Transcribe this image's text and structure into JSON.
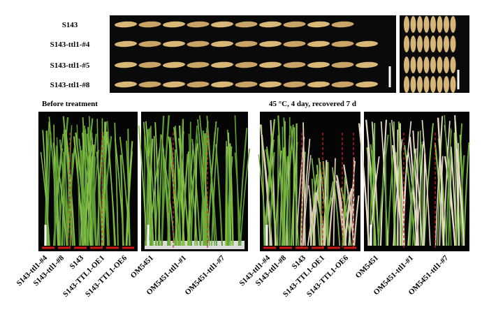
{
  "grain_panel": {
    "row_labels": [
      "S143",
      "S143-ttl1-#4",
      "S143-ttl1-#5",
      "S143-ttl1-#8"
    ]
  },
  "headers": {
    "left": "Before treatment",
    "right": "45 °C, 4 day, recovered 7 d"
  },
  "panels": [
    {
      "labels": [
        "S143-ttl1-#4",
        "S143-ttl1-#8",
        "S143",
        "S143-TTL1-OE1",
        "S143-TTL1-OE6"
      ]
    },
    {
      "labels": [
        "OM5451",
        "OM5451-ttl1-#1",
        "OM5451-ttl1-#7"
      ]
    },
    {
      "labels": [
        "S143-ttl1-#4",
        "S143-ttl1-#8",
        "S143",
        "S143-TTL1-OE1",
        "S143-TTL1-OE6"
      ]
    },
    {
      "labels": [
        "OM5451",
        "OM5451-ttl1-#1",
        "OM5451-ttl1-#7"
      ]
    }
  ]
}
